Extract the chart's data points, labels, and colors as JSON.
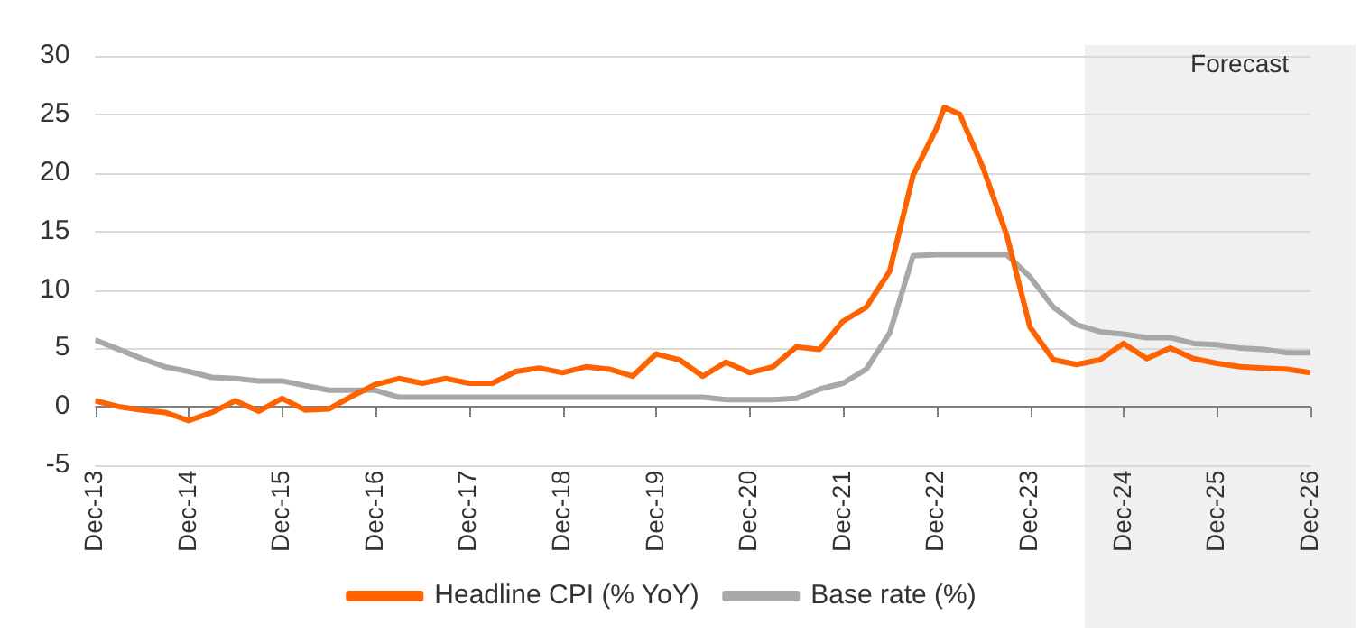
{
  "chart_data": {
    "type": "line",
    "x": [
      "2013-12",
      "2014-03",
      "2014-06",
      "2014-09",
      "2014-12",
      "2015-03",
      "2015-06",
      "2015-09",
      "2015-12",
      "2016-03",
      "2016-06",
      "2016-09",
      "2016-12",
      "2017-03",
      "2017-06",
      "2017-09",
      "2017-12",
      "2018-03",
      "2018-06",
      "2018-09",
      "2018-12",
      "2019-03",
      "2019-06",
      "2019-09",
      "2019-12",
      "2020-03",
      "2020-06",
      "2020-09",
      "2020-12",
      "2021-03",
      "2021-06",
      "2021-09",
      "2021-12",
      "2022-03",
      "2022-06",
      "2022-09",
      "2022-12",
      "2023-01",
      "2023-03",
      "2023-06",
      "2023-09",
      "2023-12",
      "2024-03",
      "2024-06",
      "2024-09",
      "2024-12",
      "2025-03",
      "2025-06",
      "2025-09",
      "2025-12",
      "2026-03",
      "2026-06",
      "2026-09",
      "2026-12"
    ],
    "series": [
      {
        "name": "Headline CPI (% YoY)",
        "color": "#ff6200",
        "values": [
          0.5,
          0,
          -0.3,
          -0.5,
          -1.2,
          -0.5,
          0.5,
          -0.4,
          0.7,
          -0.3,
          -0.2,
          0.9,
          1.9,
          2.4,
          2.0,
          2.4,
          2.0,
          2.0,
          3.0,
          3.3,
          2.9,
          3.4,
          3.2,
          2.6,
          4.5,
          4.0,
          2.6,
          3.8,
          2.9,
          3.4,
          5.1,
          4.9,
          7.3,
          8.5,
          11.6,
          19.8,
          23.8,
          25.6,
          25.0,
          20.4,
          14.7,
          6.8,
          4.0,
          3.6,
          4.0,
          5.4,
          4.1,
          5.0,
          4.1,
          3.7,
          3.4,
          3.3,
          3.2,
          2.9
        ]
      },
      {
        "name": "Base rate (%)",
        "color": "#a8a8a8",
        "values": [
          5.7,
          4.9,
          4.1,
          3.4,
          3.0,
          2.5,
          2.4,
          2.2,
          2.2,
          1.8,
          1.4,
          1.4,
          1.4,
          0.8,
          0.8,
          0.8,
          0.8,
          0.8,
          0.8,
          0.8,
          0.8,
          0.8,
          0.8,
          0.8,
          0.8,
          0.8,
          0.8,
          0.6,
          0.6,
          0.6,
          0.7,
          1.5,
          2.0,
          3.2,
          6.3,
          12.9,
          13.0,
          13.0,
          13.0,
          13.0,
          13.0,
          11.1,
          8.5,
          7.0,
          6.4,
          6.2,
          5.9,
          5.9,
          5.4,
          5.3,
          5.0,
          4.9,
          4.6,
          4.6
        ]
      }
    ],
    "xlim": [
      "2013-12",
      "2026-12"
    ],
    "xticks": [
      {
        "value": "2013-12",
        "label": "Dec-13"
      },
      {
        "value": "2014-12",
        "label": "Dec-14"
      },
      {
        "value": "2015-12",
        "label": "Dec-15"
      },
      {
        "value": "2016-12",
        "label": "Dec-16"
      },
      {
        "value": "2017-12",
        "label": "Dec-17"
      },
      {
        "value": "2018-12",
        "label": "Dec-18"
      },
      {
        "value": "2019-12",
        "label": "Dec-19"
      },
      {
        "value": "2020-12",
        "label": "Dec-20"
      },
      {
        "value": "2021-12",
        "label": "Dec-21"
      },
      {
        "value": "2022-12",
        "label": "Dec-22"
      },
      {
        "value": "2023-12",
        "label": "Dec-23"
      },
      {
        "value": "2024-12",
        "label": "Dec-24"
      },
      {
        "value": "2025-12",
        "label": "Dec-25"
      },
      {
        "value": "2026-12",
        "label": "Dec-26"
      }
    ],
    "ylim": [
      -5,
      30
    ],
    "yticks": [
      -5,
      0,
      5,
      10,
      15,
      20,
      25,
      30
    ],
    "bands": [
      {
        "axis": "x",
        "from": "2024-07",
        "to": "2026-12",
        "label": "Forecast",
        "color": "#f0f0f0"
      }
    ],
    "grid": "y",
    "legend": "bottom",
    "marker": "none",
    "line_style": "solid"
  }
}
